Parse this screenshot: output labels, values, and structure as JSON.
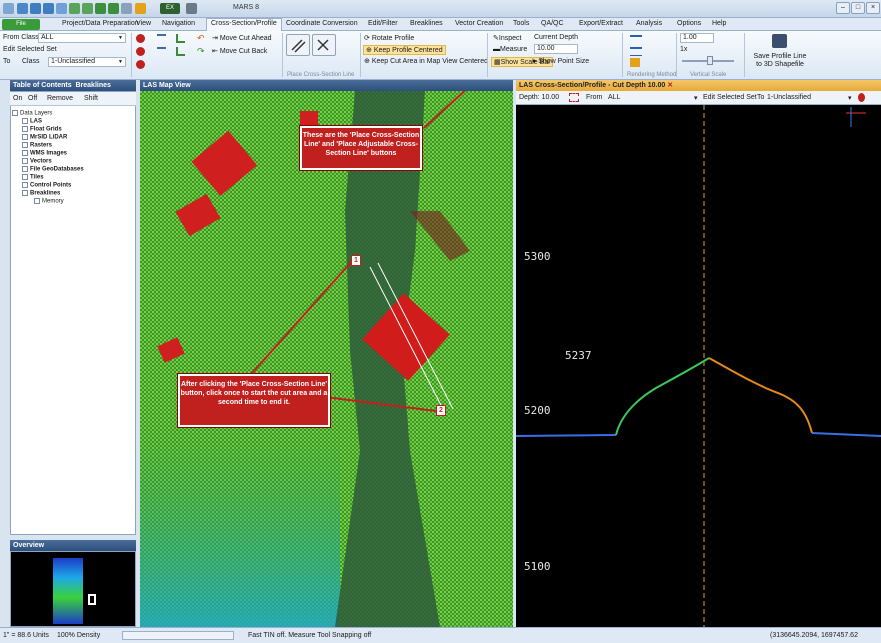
{
  "app": {
    "title": "MARS 8"
  },
  "menu": {
    "file": "File",
    "items": [
      "Project/Data Preparation",
      "View",
      "Navigation",
      "Cross-Section/Profile",
      "Coordinate Conversion",
      "Edit/Filter",
      "Breaklines",
      "Vector Creation",
      "Tools",
      "QA/QC",
      "Export/Extract",
      "Analysis",
      "Options",
      "Help"
    ]
  },
  "ribbon": {
    "from_class_label": "From Class",
    "from_class_value": "ALL",
    "edit_selected_set": "Edit Selected Set",
    "to_label": "To",
    "class_label": "Class",
    "to_class_value": "1-Unclassified",
    "move_cut_ahead": "Move Cut Ahead",
    "move_cut_back": "Move Cut Back",
    "group_place": "Place Cross-Section Line",
    "rotate_profile": "Rotate Profile",
    "keep_profile_centered": "Keep Profile Centered",
    "keep_cut_area": "Keep Cut Area in Map View Centered",
    "inspect": "Inspect",
    "measure": "Measure",
    "show_scale_bar": "Show Scale Bar",
    "current_depth_label": "Current Depth",
    "current_depth_value": "10.00",
    "show_point_size": "Show Point Size",
    "rendering_method": "Rendering Method",
    "vscale_value": "1.00",
    "vscale_mult": "1x",
    "vertical_scale": "Vertical Scale",
    "save_profile": "Save Profile Line to 3D Shapefile"
  },
  "toc": {
    "title": "Table of Contents",
    "tab2": "Breaklines",
    "buttons": [
      "On",
      "Off",
      "Remove",
      "Shift"
    ],
    "root": "Data Layers",
    "items": [
      "LAS",
      "Float Grids",
      "MrSID LiDAR",
      "Rasters",
      "WMS Images",
      "Vectors",
      "File GeoDatabases",
      "Tiles",
      "Control Points",
      "Breaklines"
    ],
    "sub": "Memory"
  },
  "overview": {
    "title": "Overview"
  },
  "map": {
    "title": "LAS Map View"
  },
  "profile": {
    "title": "LAS Cross-Section/Profile - Cut Depth 10.00",
    "depth": "Depth: 10.00",
    "from": "From",
    "from_value": "ALL",
    "edit_selected_set": "Edit Selected Set",
    "to": "To",
    "to_value": "1-Unclassified",
    "ticks": [
      "5300",
      "5237",
      "5200",
      "5100"
    ]
  },
  "callouts": {
    "top": "These are the 'Place Cross-Section Line' and 'Place Adjustable Cross-Section Line' buttons",
    "bottom": "After clicking the 'Place Cross-Section Line' button, click once to start the cut area and a second time to end it.",
    "m1": "1",
    "m2": "2"
  },
  "status": {
    "scale": "1\" = 88.6 Units",
    "density": "100% Density",
    "msg": "Fast TIN off. Measure Tool Snapping off",
    "coords": "(3136645.2094, 1697457.62"
  },
  "colors": {
    "accent": "#c0211f",
    "panel": "#2d4f7c"
  }
}
